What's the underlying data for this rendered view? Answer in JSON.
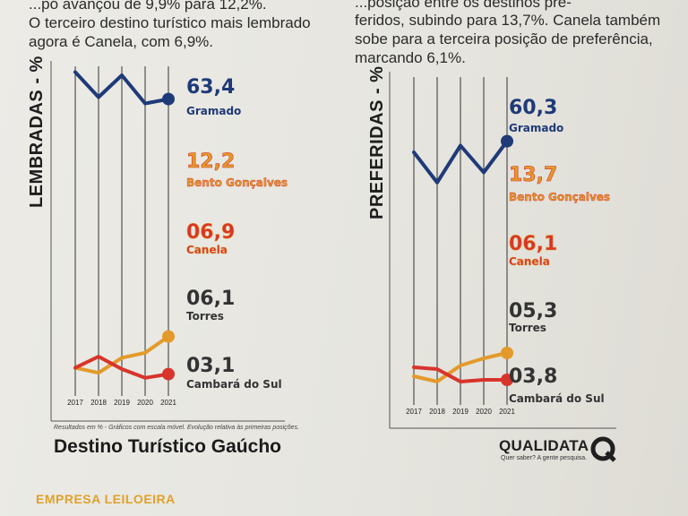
{
  "article": {
    "left_lines": [
      "...pó avançou de 9,9% para 12,2%.",
      "O terceiro destino turístico mais lembrado",
      "agora é Canela, com 6,9%."
    ],
    "right_lines": [
      "...posição entre os destinos pre-",
      "feridos, subindo para 13,7%. Canela também",
      "sobe para a terceira posição de preferência,",
      "marcando 6,1%."
    ]
  },
  "note": "Resultados em % - Gráficos com escala móvel. Evolução relativa às primeiras posições.",
  "footer_title": "Destino Turístico Gaúcho",
  "brand": {
    "name": "QUALIDATA",
    "tagline": "Quer saber? A gente pesquisa."
  },
  "empresa": "EMPRESA LEILOEIRA",
  "colors": {
    "navy": "#1f3a78",
    "orange": "#e39a2a",
    "red": "#d8342b",
    "dark": "#333333",
    "grid": "#333333"
  },
  "chart_data": [
    {
      "type": "line",
      "ylabel": "LEMBRADAS - %",
      "x": [
        "2017",
        "2018",
        "2019",
        "2020",
        "2021"
      ],
      "series": [
        {
          "name": "Gramado",
          "value_label": "63,4",
          "values": [
            72,
            64,
            71,
            62,
            63.4
          ],
          "color": "#1f3a78"
        },
        {
          "name": "Bento Gonçalves",
          "value_label": "12,2",
          "values": [
            null,
            null,
            null,
            null,
            12.2
          ],
          "color": "#e39a2a"
        },
        {
          "name": "Canela",
          "value_label": "06,9",
          "values": [
            null,
            null,
            null,
            null,
            6.9
          ],
          "color": "#d8342b"
        },
        {
          "name": "Torres",
          "value_label": "06,1",
          "values": [
            3.6,
            3.2,
            4.4,
            4.8,
            6.1
          ],
          "color": "#e39a2a"
        },
        {
          "name": "Cambará do Sul",
          "value_label": "03,1",
          "values": [
            3.6,
            4.5,
            3.5,
            2.8,
            3.1
          ],
          "color": "#d8342b"
        }
      ]
    },
    {
      "type": "line",
      "ylabel": "PREFERIDAS - %",
      "x": [
        "2017",
        "2018",
        "2019",
        "2020",
        "2021"
      ],
      "series": [
        {
          "name": "Gramado",
          "value_label": "60,3",
          "values": [
            57,
            48,
            59,
            51,
            60.3
          ],
          "color": "#1f3a78"
        },
        {
          "name": "Bento Gonçalves",
          "value_label": "13,7",
          "values": [
            null,
            null,
            null,
            null,
            13.7
          ],
          "color": "#e39a2a"
        },
        {
          "name": "Canela",
          "value_label": "06,1",
          "values": [
            null,
            null,
            null,
            null,
            6.1
          ],
          "color": "#d8342b"
        },
        {
          "name": "Torres",
          "value_label": "05,3",
          "values": [
            4.0,
            3.7,
            4.6,
            5.0,
            5.3
          ],
          "color": "#e39a2a"
        },
        {
          "name": "Cambará do Sul",
          "value_label": "03,8",
          "values": [
            4.5,
            4.4,
            3.7,
            3.8,
            3.8
          ],
          "color": "#d8342b"
        }
      ]
    }
  ]
}
